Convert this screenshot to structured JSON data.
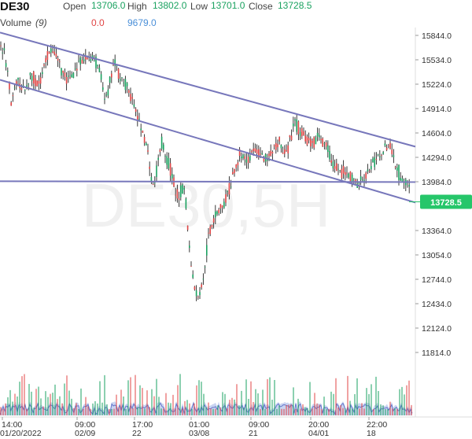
{
  "header": {
    "symbol": "DE30",
    "open_label": "Open",
    "open_value": "13706.0",
    "high_label": "High",
    "high_value": "13802.0",
    "low_label": "Low",
    "low_value": "13701.0",
    "close_label": "Close",
    "close_value": "13728.5",
    "volume_label": "Volume",
    "volume_param": "(9)",
    "volume_value": "0.0",
    "volume_ma_value": "9679.0"
  },
  "watermark": "DE30,5H",
  "colors": {
    "up": "#1aa260",
    "down": "#e04444",
    "wick": "#222222",
    "trendline": "#7777bb",
    "volume_area": "#b8c6ec",
    "volume_line": "#6677cc",
    "last_price_badge": "#26c66a",
    "grid": "#e6e6e6"
  },
  "chart_data": {
    "type": "candlestick",
    "y_axis": {
      "ticks": [
        15844.0,
        15534.0,
        15224.0,
        14914.0,
        14604.0,
        14294.0,
        13984.0,
        13364.0,
        13054.0,
        12744.0,
        12434.0,
        12124.0,
        11814.0
      ]
    },
    "x_axis": {
      "ticks": [
        {
          "time": "14:00",
          "date": "01/20/2022"
        },
        {
          "time": "09:00",
          "date": "02/09"
        },
        {
          "time": "17:00",
          "date": "22"
        },
        {
          "time": "01:00",
          "date": "03/08"
        },
        {
          "time": "09:00",
          "date": "21"
        },
        {
          "time": "20:00",
          "date": "04/01"
        },
        {
          "time": "22:00",
          "date": "18"
        }
      ]
    },
    "last_price": 13728.5,
    "price_path": [
      [
        0,
        15780
      ],
      [
        8,
        15500
      ],
      [
        15,
        15000
      ],
      [
        22,
        15300
      ],
      [
        30,
        15100
      ],
      [
        40,
        15350
      ],
      [
        50,
        15200
      ],
      [
        60,
        15600
      ],
      [
        68,
        15650
      ],
      [
        75,
        15500
      ],
      [
        85,
        15250
      ],
      [
        95,
        15400
      ],
      [
        105,
        15500
      ],
      [
        115,
        15600
      ],
      [
        125,
        15450
      ],
      [
        135,
        15000
      ],
      [
        145,
        15500
      ],
      [
        155,
        15300
      ],
      [
        165,
        15100
      ],
      [
        175,
        14800
      ],
      [
        185,
        14500
      ],
      [
        195,
        13900
      ],
      [
        205,
        14500
      ],
      [
        215,
        14200
      ],
      [
        225,
        13800
      ],
      [
        235,
        13900
      ],
      [
        242,
        13000
      ],
      [
        250,
        12500
      ],
      [
        258,
        12700
      ],
      [
        265,
        13300
      ],
      [
        275,
        13600
      ],
      [
        285,
        13700
      ],
      [
        295,
        14000
      ],
      [
        305,
        14350
      ],
      [
        315,
        14250
      ],
      [
        325,
        14400
      ],
      [
        335,
        14250
      ],
      [
        345,
        14300
      ],
      [
        355,
        14500
      ],
      [
        365,
        14350
      ],
      [
        375,
        14750
      ],
      [
        385,
        14600
      ],
      [
        395,
        14450
      ],
      [
        405,
        14550
      ],
      [
        415,
        14450
      ],
      [
        425,
        14150
      ],
      [
        435,
        14100
      ],
      [
        445,
        14050
      ],
      [
        455,
        13950
      ],
      [
        465,
        14100
      ],
      [
        475,
        14200
      ],
      [
        485,
        14350
      ],
      [
        495,
        14450
      ],
      [
        505,
        14150
      ],
      [
        512,
        14000
      ],
      [
        520,
        13950
      ],
      [
        523,
        13730
      ]
    ],
    "trendlines": [
      {
        "name": "upper-channel",
        "points": [
          [
            0,
            15880
          ],
          [
            528,
            14430
          ]
        ]
      },
      {
        "name": "lower-channel",
        "points": [
          [
            0,
            15280
          ],
          [
            528,
            13720
          ]
        ]
      },
      {
        "name": "horizontal-level",
        "points": [
          [
            0,
            13990
          ],
          [
            528,
            13980
          ]
        ]
      }
    ]
  }
}
